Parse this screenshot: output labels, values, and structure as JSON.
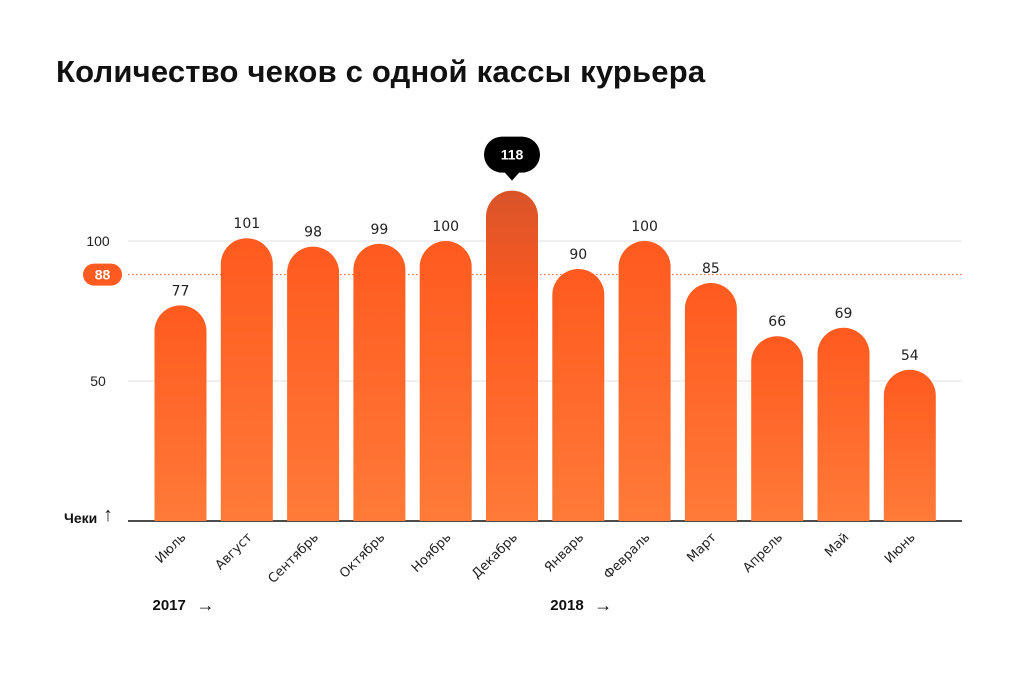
{
  "colors": {
    "bar_top": "#ff5a1f",
    "bar_bottom": "#ff7a38",
    "peak_top": "#d9542a",
    "grid": "#e0e0e0",
    "accent": "#ff5a1f",
    "axis": "#111111",
    "tooltip": "#000000"
  },
  "chart_data": {
    "type": "bar",
    "title": "Количество чеков с одной кассы курьера",
    "ylabel": "Чеки",
    "ylim": [
      0,
      120
    ],
    "yticks": [
      50,
      100
    ],
    "categories": [
      "Июль",
      "Август",
      "Сентябрь",
      "Октябрь",
      "Ноябрь",
      "Декабрь",
      "Январь",
      "Февраль",
      "Март",
      "Апрель",
      "Май",
      "Июнь"
    ],
    "values": [
      77,
      101,
      98,
      99,
      100,
      118,
      90,
      100,
      85,
      66,
      69,
      54
    ],
    "value_labels": [
      "77",
      "101",
      "98",
      "99",
      "100",
      "118",
      "90",
      "100",
      "85",
      "66",
      "69",
      "54"
    ],
    "highlight": {
      "index": 5,
      "label": "118"
    },
    "reference_line": {
      "value": 88,
      "label": "88"
    },
    "year_markers": [
      {
        "label": "2017",
        "arrow": "→",
        "start_index": 0
      },
      {
        "label": "2018",
        "arrow": "→",
        "start_index": 6
      }
    ],
    "ylabel_arrow": "↑"
  }
}
